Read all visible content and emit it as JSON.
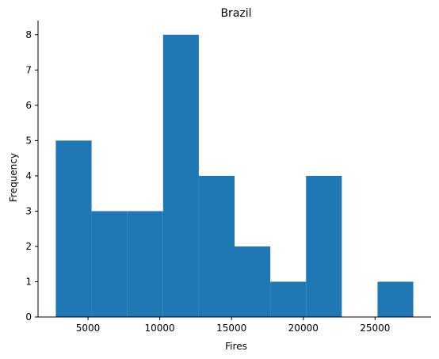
{
  "chart_data": {
    "type": "bar",
    "title": "Brazil",
    "xlabel": "Fires",
    "ylabel": "Frequency",
    "bins": [
      {
        "start": 2760,
        "end": 5250,
        "value": 5
      },
      {
        "start": 5250,
        "end": 7740,
        "value": 3
      },
      {
        "start": 7740,
        "end": 10230,
        "value": 3
      },
      {
        "start": 10230,
        "end": 12720,
        "value": 8
      },
      {
        "start": 12720,
        "end": 15210,
        "value": 4
      },
      {
        "start": 15210,
        "end": 17700,
        "value": 2
      },
      {
        "start": 17700,
        "end": 20190,
        "value": 1
      },
      {
        "start": 20190,
        "end": 22680,
        "value": 4
      },
      {
        "start": 22680,
        "end": 25170,
        "value": 0
      },
      {
        "start": 25170,
        "end": 27660,
        "value": 1
      }
    ],
    "xlim": [
      1520,
      28900
    ],
    "ylim": [
      0,
      8.4
    ],
    "xticks": [
      5000,
      10000,
      15000,
      20000,
      25000
    ],
    "yticks": [
      0,
      1,
      2,
      3,
      4,
      5,
      6,
      7,
      8
    ],
    "grid": false,
    "bar_color": "#1f77b4",
    "spines": "left-bottom"
  }
}
